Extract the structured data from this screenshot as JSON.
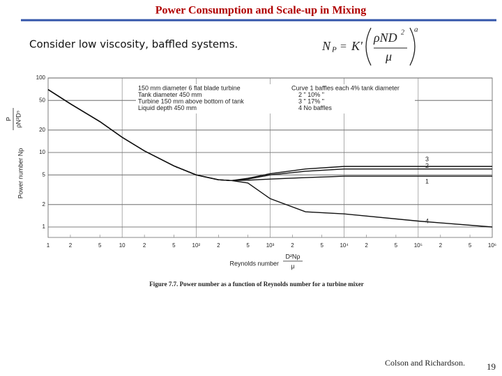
{
  "slide": {
    "title": "Power Consumption and Scale-up in Mixing",
    "subtitle": "Consider low viscosity, baffled systems.",
    "formula": {
      "lhs": "N",
      "lhs_sub": "P",
      "eq": "=",
      "k": "K'",
      "num": "ρND",
      "num_sup": "2",
      "den": "μ",
      "exp": "a"
    },
    "source": "Colson and Richardson.",
    "page": "19"
  },
  "chart_data": {
    "type": "line",
    "log_x": true,
    "log_y": true,
    "grid": true,
    "ylabel": "Power number Np",
    "ylabel_formula": [
      "P",
      "ρN³D⁵"
    ],
    "xlabel": "Reynolds number",
    "xlabel_formula": [
      "D²Nρ",
      "μ"
    ],
    "caption": "Figure 7.7.   Power number as a function of Reynolds number for a turbine mixer",
    "annotations": [
      "150 mm diameter 6 flat blade turbine",
      "Tank diameter 450 mm",
      "Turbine 150 mm above bottom of tank",
      "Liquid depth 450 mm"
    ],
    "baffle_notes": [
      "Curve 1 baffles each 4% tank diameter",
      "2      \"      10%    \"",
      "3      \"      17%    \"",
      "4 No baffles"
    ],
    "xlim": [
      1,
      1000000
    ],
    "ylim": [
      1,
      100
    ],
    "xticks": [
      1,
      2,
      5,
      10,
      {
        "value": 20,
        "label": "2"
      },
      {
        "value": 50,
        "label": "5"
      },
      {
        "value": 100,
        "label": "10²"
      },
      {
        "value": 200,
        "label": "2"
      },
      {
        "value": 500,
        "label": "5"
      },
      {
        "value": 1000,
        "label": "10³"
      },
      {
        "value": 2000,
        "label": "2"
      },
      {
        "value": 5000,
        "label": "5"
      },
      {
        "value": 10000,
        "label": "10⁴"
      },
      {
        "value": 20000,
        "label": "2"
      },
      {
        "value": 50000,
        "label": "5"
      },
      {
        "value": 100000,
        "label": "10⁵"
      },
      {
        "value": 200000,
        "label": "2"
      },
      {
        "value": 500000,
        "label": "5"
      },
      {
        "value": 1000000,
        "label": "10⁶"
      }
    ],
    "yticks": [
      1,
      2,
      5,
      10,
      20,
      50,
      100
    ],
    "x": [
      1,
      2,
      5,
      10,
      20,
      50,
      100,
      200,
      300,
      500,
      1000,
      3000,
      10000,
      100000,
      1000000
    ],
    "series": [
      {
        "name": "1",
        "color": "#111111",
        "values": [
          70,
          45,
          26,
          16,
          10.5,
          6.6,
          5,
          4.3,
          4.2,
          4.25,
          4.4,
          4.6,
          4.8,
          4.8,
          4.8
        ]
      },
      {
        "name": "2",
        "color": "#111111",
        "values": [
          70,
          45,
          26,
          16,
          10.5,
          6.6,
          5,
          4.3,
          4.2,
          4.4,
          5.0,
          5.6,
          6.0,
          6.0,
          6.0
        ]
      },
      {
        "name": "3",
        "color": "#111111",
        "values": [
          70,
          45,
          26,
          16,
          10.5,
          6.6,
          5,
          4.3,
          4.2,
          4.5,
          5.2,
          6.0,
          6.5,
          6.5,
          6.5
        ]
      },
      {
        "name": "4",
        "color": "#111111",
        "values": [
          70,
          45,
          26,
          16,
          10.5,
          6.6,
          5,
          4.3,
          4.2,
          3.9,
          2.4,
          1.6,
          1.5,
          1.2,
          1.0
        ]
      }
    ]
  }
}
